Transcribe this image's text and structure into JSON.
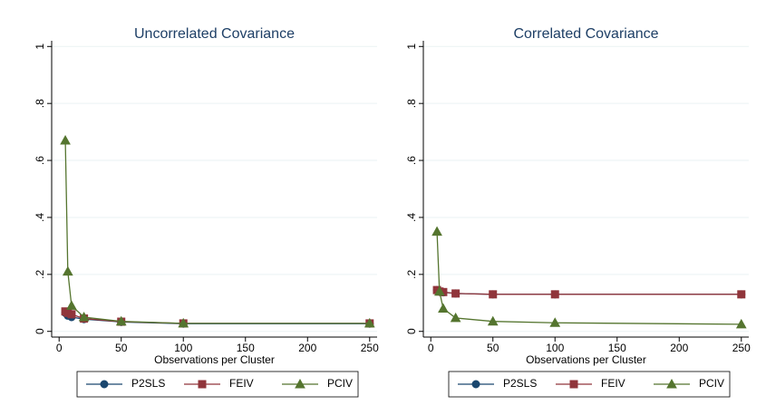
{
  "chart_data": [
    {
      "type": "line",
      "title": "Uncorrelated Covariance",
      "x_label": "Observations per Cluster",
      "x": [
        5,
        7,
        10,
        20,
        50,
        100,
        250
      ],
      "series": [
        {
          "name": "P2SLS",
          "color": "#1a476f",
          "marker": "circle",
          "values": [
            0.065,
            0.055,
            0.05,
            0.043,
            0.033,
            0.027,
            0.027
          ]
        },
        {
          "name": "FEIV",
          "color": "#90353b",
          "marker": "square",
          "values": [
            0.07,
            0.065,
            0.06,
            0.045,
            0.034,
            0.028,
            0.028
          ]
        },
        {
          "name": "PCIV",
          "color": "#55752f",
          "marker": "triangle",
          "values": [
            0.67,
            0.21,
            0.09,
            0.05,
            0.035,
            0.028,
            0.028
          ]
        }
      ],
      "xlim": [
        -6,
        256
      ],
      "xticks": [
        0,
        50,
        100,
        150,
        200,
        250
      ],
      "ylim": [
        -0.02,
        1.02
      ],
      "yticks": [
        0,
        {
          "value": 0.2,
          "label": ".2"
        },
        {
          "value": 0.4,
          "label": ".4"
        },
        {
          "value": 0.6,
          "label": ".6"
        },
        {
          "value": 0.8,
          "label": ".8"
        },
        1
      ],
      "grid": true
    },
    {
      "type": "line",
      "title": "Correlated Covariance",
      "x_label": "Observations per Cluster",
      "x": [
        5,
        7,
        10,
        20,
        50,
        100,
        250
      ],
      "series": [
        {
          "name": "P2SLS",
          "color": "#1a476f",
          "marker": "circle",
          "values": [
            0.145,
            0.14,
            0.137,
            0.133,
            0.13,
            0.13,
            0.13
          ]
        },
        {
          "name": "FEIV",
          "color": "#90353b",
          "marker": "square",
          "values": [
            0.145,
            0.14,
            0.138,
            0.133,
            0.13,
            0.13,
            0.13
          ]
        },
        {
          "name": "PCIV",
          "color": "#55752f",
          "marker": "triangle",
          "values": [
            0.35,
            0.14,
            0.08,
            0.047,
            0.035,
            0.03,
            0.025
          ]
        }
      ],
      "xlim": [
        -6,
        256
      ],
      "xticks": [
        0,
        50,
        100,
        150,
        200,
        250
      ],
      "ylim": [
        -0.02,
        1.02
      ],
      "yticks": [
        0,
        {
          "value": 0.2,
          "label": ".2"
        },
        {
          "value": 0.4,
          "label": ".4"
        },
        {
          "value": 0.6,
          "label": ".6"
        },
        {
          "value": 0.8,
          "label": ".8"
        },
        1
      ],
      "grid": true
    }
  ]
}
